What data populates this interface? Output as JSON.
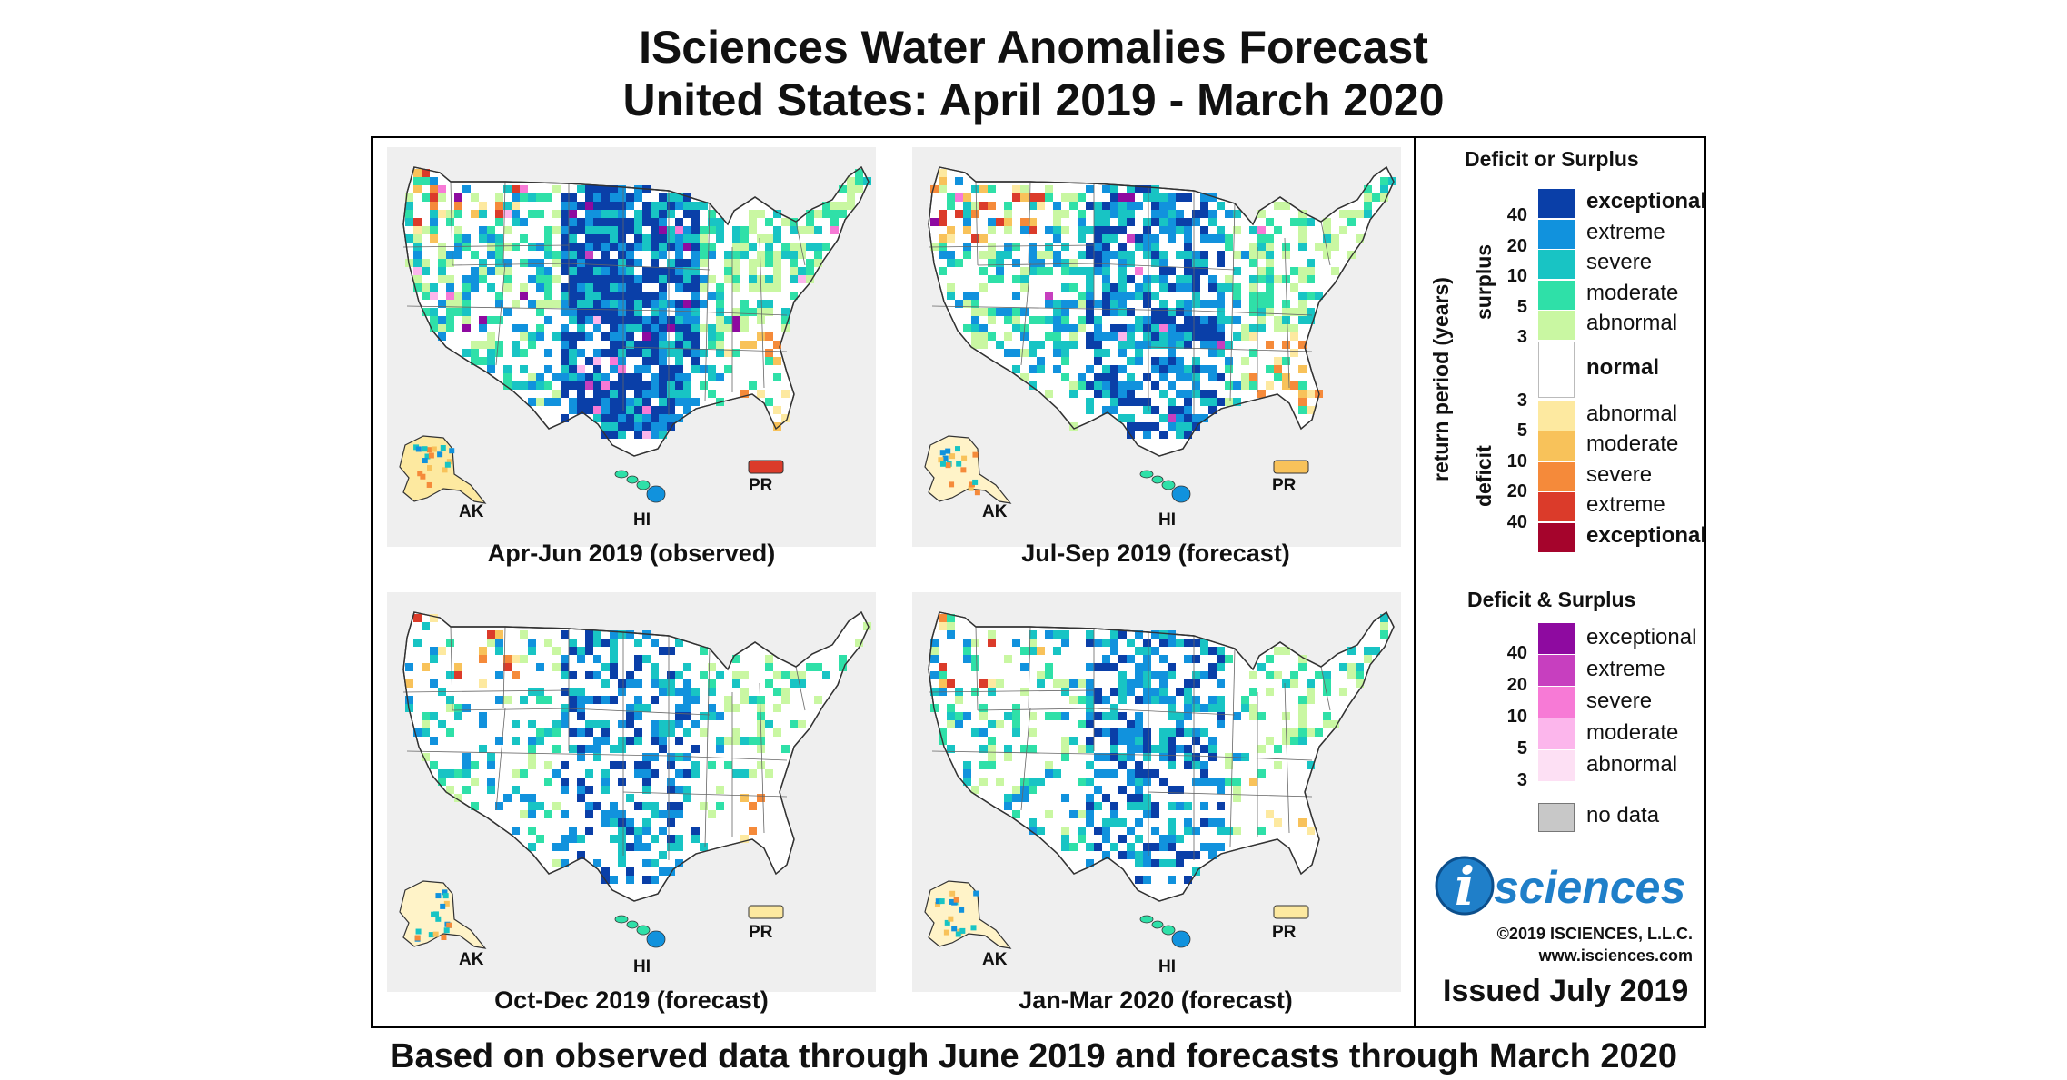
{
  "title_line1": "ISciences Water Anomalies Forecast",
  "title_line2": "United States: April 2019 - March 2020",
  "footer": "Based on observed data through June 2019 and forecasts through March 2020",
  "panels": [
    {
      "caption": "Apr-Jun 2019 (observed)",
      "ak": "AK",
      "hi": "HI",
      "pr": "PR"
    },
    {
      "caption": "Jul-Sep 2019 (forecast)",
      "ak": "AK",
      "hi": "HI",
      "pr": "PR"
    },
    {
      "caption": "Oct-Dec 2019 (forecast)",
      "ak": "AK",
      "hi": "HI",
      "pr": "PR"
    },
    {
      "caption": "Jan-Mar 2020 (forecast)",
      "ak": "AK",
      "hi": "HI",
      "pr": "PR"
    }
  ],
  "legend": {
    "heading1": "Deficit or Surplus",
    "axis_label": "return period (years)",
    "surplus_label": "surplus",
    "deficit_label": "deficit",
    "surplus_items": [
      {
        "label": "exceptional",
        "color": "#0a3fa8",
        "bold": true
      },
      {
        "label": "extreme",
        "color": "#1192dd",
        "bold": false
      },
      {
        "label": "severe",
        "color": "#18c4c4",
        "bold": false
      },
      {
        "label": "moderate",
        "color": "#2fe0a8",
        "bold": false
      },
      {
        "label": "abnormal",
        "color": "#c9f7a2",
        "bold": false
      }
    ],
    "surplus_numbers": [
      "40",
      "20",
      "10",
      "5",
      "3"
    ],
    "normal": {
      "label": "normal",
      "color": "#ffffff"
    },
    "deficit_items": [
      {
        "label": "abnormal",
        "color": "#fde9a0",
        "bold": false
      },
      {
        "label": "moderate",
        "color": "#f8c25a",
        "bold": false
      },
      {
        "label": "severe",
        "color": "#f58a3a",
        "bold": false
      },
      {
        "label": "extreme",
        "color": "#db3b2a",
        "bold": false
      },
      {
        "label": "exceptional",
        "color": "#a5042c",
        "bold": true
      }
    ],
    "deficit_numbers": [
      "3",
      "5",
      "10",
      "20",
      "40"
    ],
    "heading2": "Deficit & Surplus",
    "both_items": [
      {
        "label": "exceptional",
        "color": "#8e0aa0"
      },
      {
        "label": "extreme",
        "color": "#c73fbf"
      },
      {
        "label": "severe",
        "color": "#f77ad6"
      },
      {
        "label": "moderate",
        "color": "#fcb6ec"
      },
      {
        "label": "abnormal",
        "color": "#fde0f4"
      }
    ],
    "both_numbers": [
      "40",
      "20",
      "10",
      "5",
      "3"
    ],
    "no_data": {
      "label": "no data",
      "color": "#c8c8c8"
    }
  },
  "logo": {
    "letter": "i",
    "text": "sciences"
  },
  "copyright": "©2019 ISCIENCES, L.L.C.",
  "website": "www.isciences.com",
  "issued": "Issued July 2019"
}
